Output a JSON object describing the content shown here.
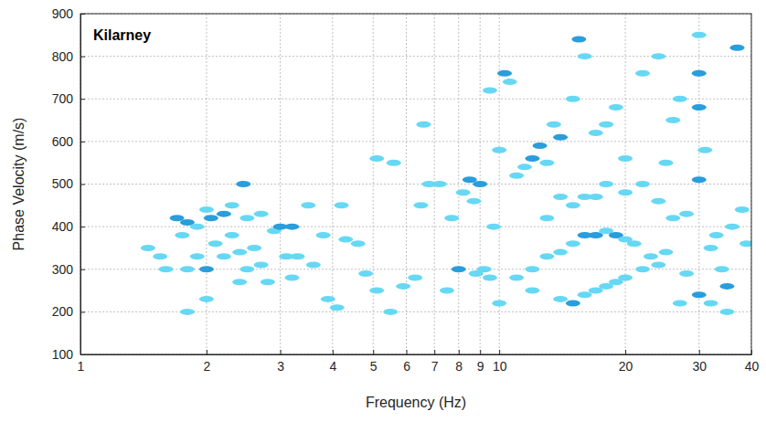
{
  "chart_data": {
    "type": "scatter",
    "title": "Kilarney",
    "x_label": "Frequency (Hz)",
    "y_label": "Phase Velocity (m/s)",
    "log": "x",
    "grid": true,
    "marker": "ellipse",
    "xlim": [
      1,
      40
    ],
    "ylim": [
      100,
      900
    ],
    "xticks": [
      1,
      2,
      3,
      4,
      5,
      6,
      7,
      8,
      9,
      10,
      20,
      30,
      40
    ],
    "yticks": [
      100,
      200,
      300,
      400,
      500,
      600,
      700,
      800,
      900
    ],
    "x": [
      1.45,
      1.55,
      1.6,
      1.7,
      1.8,
      1.75,
      1.9,
      2.0,
      2.05,
      2.2,
      2.3,
      2.45,
      2.5,
      2.7,
      2.9,
      3.0,
      3.2,
      3.5,
      3.1,
      2.3,
      2.1,
      1.9,
      2.2,
      2.5,
      2.0,
      1.8,
      2.4,
      2.6,
      2.7,
      3.3,
      3.6,
      3.8,
      4.3,
      4.2,
      4.6,
      1.8,
      2.0,
      2.4,
      2.8,
      3.2,
      3.9,
      4.1,
      4.8,
      5.1,
      5.5,
      5.1,
      5.6,
      5.9,
      6.3,
      6.5,
      6.6,
      6.8,
      7.2,
      7.5,
      7.7,
      8.0,
      8.2,
      8.5,
      8.7,
      9.0,
      9.2,
      9.5,
      9.7,
      10,
      10.3,
      10.6,
      11,
      11.5,
      12,
      12.5,
      13,
      13.5,
      14,
      15,
      15.5,
      16,
      17,
      18,
      19,
      12,
      13,
      14,
      15,
      16,
      17,
      18,
      19,
      20,
      21,
      14,
      15,
      16,
      17,
      18,
      19,
      20,
      22,
      24,
      11,
      12,
      10,
      13,
      15,
      17,
      20,
      22,
      24,
      26,
      28,
      30,
      30,
      30,
      31,
      30,
      32,
      33,
      34,
      35,
      36,
      37,
      38,
      39,
      25,
      26,
      27,
      24,
      22,
      27,
      30,
      32,
      35,
      20,
      18,
      16,
      14,
      25,
      23,
      28,
      9.5,
      8.8
    ],
    "values": [
      350,
      330,
      300,
      420,
      410,
      380,
      400,
      440,
      420,
      430,
      450,
      500,
      420,
      430,
      390,
      400,
      400,
      450,
      330,
      380,
      360,
      330,
      330,
      300,
      300,
      300,
      340,
      350,
      310,
      330,
      310,
      380,
      370,
      450,
      360,
      200,
      230,
      270,
      270,
      280,
      230,
      210,
      290,
      250,
      200,
      560,
      550,
      260,
      280,
      450,
      640,
      500,
      500,
      250,
      420,
      300,
      480,
      510,
      460,
      500,
      300,
      720,
      400,
      580,
      760,
      740,
      520,
      540,
      560,
      590,
      550,
      640,
      610,
      700,
      840,
      800,
      620,
      640,
      680,
      300,
      330,
      340,
      360,
      380,
      380,
      390,
      380,
      370,
      360,
      230,
      220,
      240,
      250,
      260,
      270,
      280,
      300,
      310,
      280,
      250,
      220,
      420,
      450,
      470,
      480,
      500,
      460,
      420,
      430,
      510,
      680,
      760,
      580,
      850,
      350,
      380,
      300,
      260,
      400,
      820,
      440,
      360,
      550,
      650,
      700,
      800,
      760,
      220,
      240,
      220,
      200,
      560,
      500,
      470,
      470,
      340,
      330,
      290,
      280,
      290
    ],
    "colors": [
      "#66d8f4",
      "#66d8f4",
      "#66d8f4",
      "#2a9ddb",
      "#2a9ddb",
      "#66d8f4",
      "#66d8f4",
      "#66d8f4",
      "#2a9ddb",
      "#2a9ddb",
      "#66d8f4",
      "#2a9ddb",
      "#66d8f4",
      "#66d8f4",
      "#66d8f4",
      "#2a9ddb",
      "#2a9ddb",
      "#66d8f4",
      "#66d8f4",
      "#66d8f4",
      "#66d8f4",
      "#66d8f4",
      "#66d8f4",
      "#66d8f4",
      "#2a9ddb",
      "#66d8f4",
      "#66d8f4",
      "#66d8f4",
      "#66d8f4",
      "#66d8f4",
      "#66d8f4",
      "#66d8f4",
      "#66d8f4",
      "#66d8f4",
      "#66d8f4",
      "#66d8f4",
      "#66d8f4",
      "#66d8f4",
      "#66d8f4",
      "#66d8f4",
      "#66d8f4",
      "#66d8f4",
      "#66d8f4",
      "#66d8f4",
      "#66d8f4",
      "#66d8f4",
      "#66d8f4",
      "#66d8f4",
      "#66d8f4",
      "#66d8f4",
      "#66d8f4",
      "#66d8f4",
      "#66d8f4",
      "#66d8f4",
      "#66d8f4",
      "#2a9ddb",
      "#66d8f4",
      "#2a9ddb",
      "#66d8f4",
      "#2a9ddb",
      "#66d8f4",
      "#66d8f4",
      "#66d8f4",
      "#66d8f4",
      "#2a9ddb",
      "#66d8f4",
      "#66d8f4",
      "#66d8f4",
      "#2a9ddb",
      "#2a9ddb",
      "#66d8f4",
      "#66d8f4",
      "#2a9ddb",
      "#66d8f4",
      "#2a9ddb",
      "#66d8f4",
      "#66d8f4",
      "#66d8f4",
      "#66d8f4",
      "#66d8f4",
      "#66d8f4",
      "#66d8f4",
      "#66d8f4",
      "#2a9ddb",
      "#2a9ddb",
      "#66d8f4",
      "#2a9ddb",
      "#66d8f4",
      "#66d8f4",
      "#66d8f4",
      "#2a9ddb",
      "#66d8f4",
      "#66d8f4",
      "#66d8f4",
      "#66d8f4",
      "#66d8f4",
      "#66d8f4",
      "#66d8f4",
      "#66d8f4",
      "#66d8f4",
      "#66d8f4",
      "#66d8f4",
      "#66d8f4",
      "#66d8f4",
      "#66d8f4",
      "#66d8f4",
      "#66d8f4",
      "#66d8f4",
      "#66d8f4",
      "#2a9ddb",
      "#2a9ddb",
      "#2a9ddb",
      "#66d8f4",
      "#66d8f4",
      "#66d8f4",
      "#66d8f4",
      "#66d8f4",
      "#2a9ddb",
      "#66d8f4",
      "#2a9ddb",
      "#66d8f4",
      "#66d8f4",
      "#66d8f4",
      "#66d8f4",
      "#66d8f4",
      "#66d8f4",
      "#66d8f4",
      "#66d8f4",
      "#2a9ddb",
      "#66d8f4",
      "#66d8f4",
      "#66d8f4",
      "#66d8f4",
      "#66d8f4",
      "#66d8f4",
      "#66d8f4",
      "#66d8f4",
      "#66d8f4",
      "#66d8f4",
      "#66d8f4"
    ]
  }
}
